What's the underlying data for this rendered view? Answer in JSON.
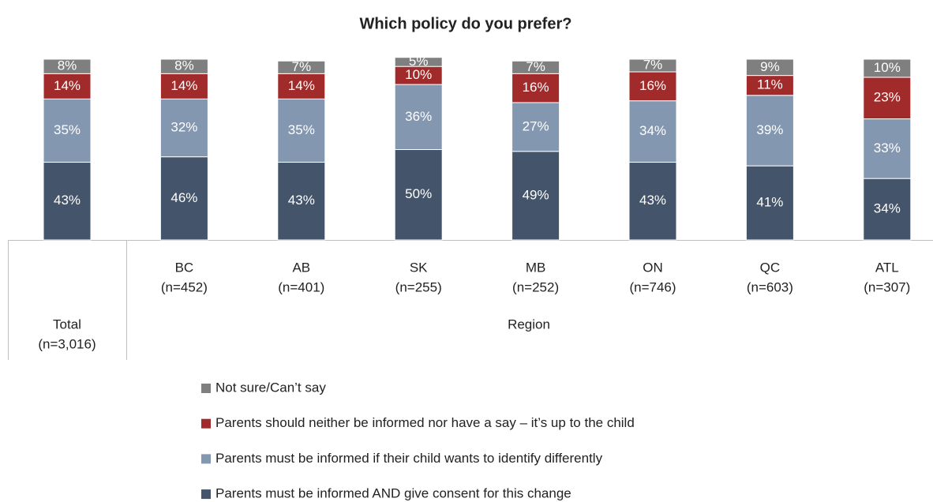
{
  "chart_data": {
    "type": "stacked_bar",
    "title": "Which policy do you prefer?",
    "categories": [
      "Total",
      "BC",
      "AB",
      "SK",
      "MB",
      "ON",
      "QC",
      "ATL"
    ],
    "category_counts": [
      "(n=3,016)",
      "(n=452)",
      "(n=401)",
      "(n=255)",
      "(n=252)",
      "(n=746)",
      "(n=603)",
      "(n=307)"
    ],
    "group_label": "Region",
    "ylim": [
      0,
      100
    ],
    "series": [
      {
        "name": "Parents must be informed AND give consent for this change",
        "color": "#44546a",
        "values": [
          43,
          46,
          43,
          50,
          49,
          43,
          41,
          34
        ],
        "value_labels": [
          "43%",
          "46%",
          "43%",
          "50%",
          "49%",
          "43%",
          "41%",
          "34%"
        ]
      },
      {
        "name": "Parents must be informed if their child wants to identify differently",
        "color": "#8497b0",
        "values": [
          35,
          32,
          35,
          36,
          27,
          34,
          39,
          33
        ],
        "value_labels": [
          "35%",
          "32%",
          "35%",
          "36%",
          "27%",
          "34%",
          "39%",
          "33%"
        ]
      },
      {
        "name": "Parents should neither be informed nor have a say – it’s up to the child",
        "color": "#a12a2a",
        "values": [
          14,
          14,
          14,
          10,
          16,
          16,
          11,
          23
        ],
        "value_labels": [
          "14%",
          "14%",
          "14%",
          "10%",
          "16%",
          "16%",
          "11%",
          "23%"
        ]
      },
      {
        "name": "Not sure/Can’t say",
        "color": "#7f7f7f",
        "values": [
          8,
          8,
          7,
          5,
          7,
          7,
          9,
          10
        ],
        "value_labels": [
          "8%",
          "8%",
          "7%",
          "5%",
          "7%",
          "7%",
          "9%",
          "10%"
        ]
      }
    ]
  }
}
